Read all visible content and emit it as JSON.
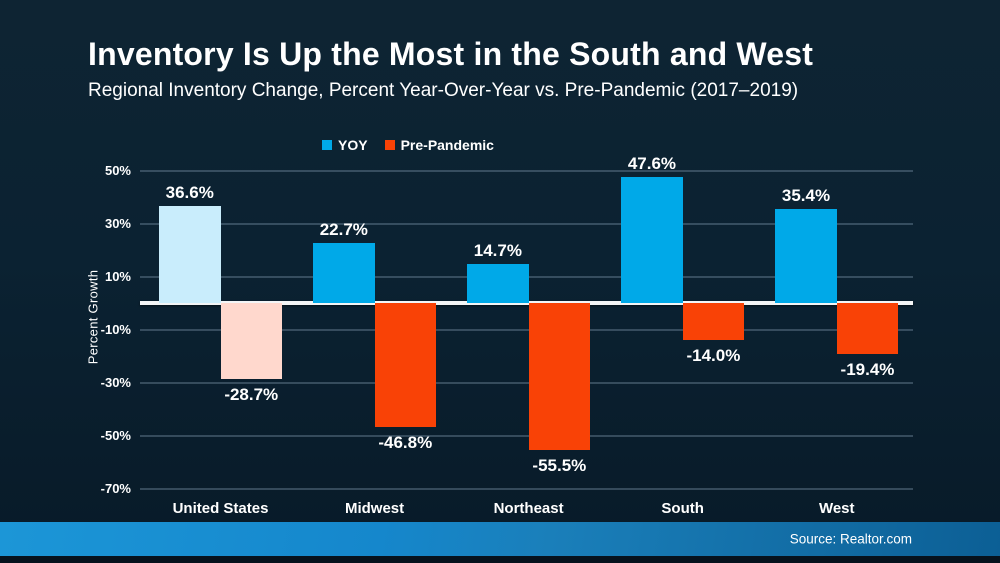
{
  "slide": {
    "title": "Inventory Is Up the Most in the South and West",
    "subtitle": "Regional Inventory Change, Percent Year-Over-Year vs. Pre-Pandemic (2017–2019)",
    "source": "Source: Realtor.com"
  },
  "colors": {
    "background_top": "#0e2433",
    "background_bottom": "#081a28",
    "yoy_blue": "#00a9e8",
    "yoy_blue_light": "#c9edfc",
    "prepandemic_red": "#f94206",
    "prepandemic_red_light": "#ffd8cd",
    "zero_line": "#f3f5f6",
    "gridline": "#51677a",
    "footer_band_left": "#1c96d7",
    "footer_band_right": "#0c5f95"
  },
  "legend": {
    "items": [
      {
        "label": "YOY",
        "color": "#00a9e8"
      },
      {
        "label": "Pre-Pandemic",
        "color": "#f94206"
      }
    ]
  },
  "chart_data": {
    "type": "bar",
    "title": "Inventory Is Up the Most in the South and West",
    "subtitle": "Regional Inventory Change, Percent Year-Over-Year vs. Pre-Pandemic (2017–2019)",
    "categories": [
      "United States",
      "Midwest",
      "Northeast",
      "South",
      "West"
    ],
    "series": [
      {
        "name": "YOY",
        "values": [
          36.6,
          22.7,
          14.7,
          47.6,
          35.4
        ],
        "labels": [
          "36.6%",
          "22.7%",
          "14.7%",
          "47.6%",
          "35.4%"
        ],
        "colors": [
          "#c9edfc",
          "#00a9e8",
          "#00a9e8",
          "#00a9e8",
          "#00a9e8"
        ]
      },
      {
        "name": "Pre-Pandemic",
        "values": [
          -28.7,
          -46.8,
          -55.5,
          -14.0,
          -19.4
        ],
        "labels": [
          "-28.7%",
          "-46.8%",
          "-55.5%",
          "-14.0%",
          "-19.4%"
        ],
        "colors": [
          "#ffd8cd",
          "#f94206",
          "#f94206",
          "#f94206",
          "#f94206"
        ]
      }
    ],
    "ylabel": "Percent Growth",
    "yticks": [
      "50%",
      "30%",
      "10%",
      "-10%",
      "-30%",
      "-50%",
      "-70%"
    ],
    "ylim": [
      -75,
      55
    ],
    "grid": true,
    "legend_position": "top-center",
    "source": "Source: Realtor.com"
  }
}
